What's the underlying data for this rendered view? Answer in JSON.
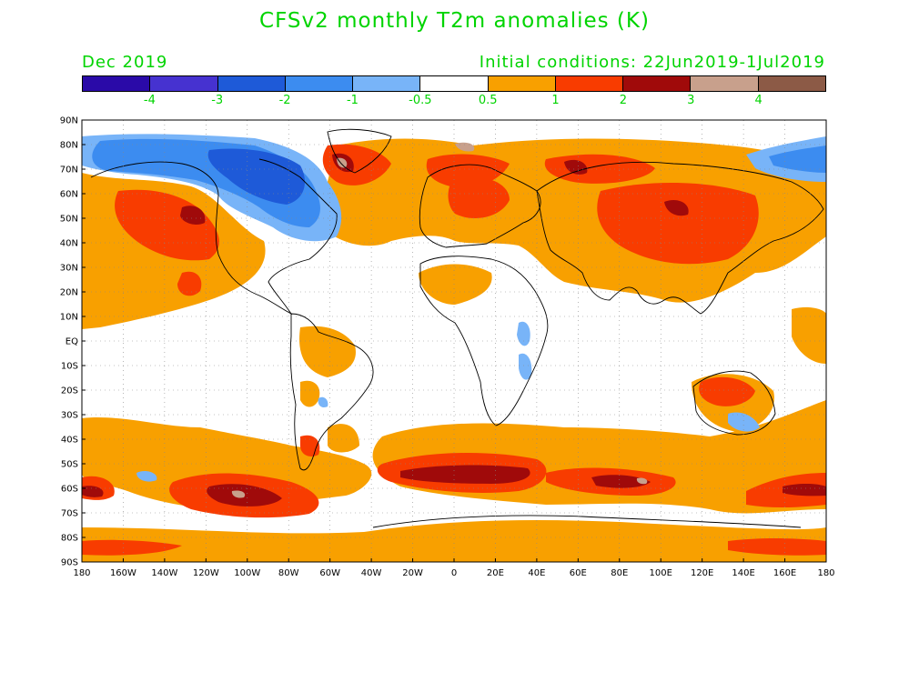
{
  "title": "CFSv2 monthly T2m anomalies (K)",
  "month_label": "Dec 2019",
  "initial_conditions": "Initial conditions: 22Jun2019-1Jul2019",
  "legend": {
    "colors": [
      "#2a0aa8",
      "#4632d0",
      "#1e5ad8",
      "#3c8cf0",
      "#78b4f8",
      "#ffffff",
      "#f8a000",
      "#f83c00",
      "#a00a0a",
      "#c8a08c",
      "#8c5a46"
    ],
    "labels": [
      "-4",
      "-3",
      "-2",
      "-1",
      "-0.5",
      "0.5",
      "1",
      "2",
      "3",
      "4"
    ]
  },
  "axes": {
    "lat_labels": [
      "90N",
      "80N",
      "70N",
      "60N",
      "50N",
      "40N",
      "30N",
      "20N",
      "10N",
      "EQ",
      "10S",
      "20S",
      "30S",
      "40S",
      "50S",
      "60S",
      "70S",
      "80S",
      "90S"
    ],
    "lon_labels": [
      "180",
      "160W",
      "140W",
      "120W",
      "100W",
      "80W",
      "60W",
      "40W",
      "20W",
      "0",
      "20E",
      "40E",
      "60E",
      "80E",
      "100E",
      "120E",
      "140E",
      "160E",
      "180"
    ]
  }
}
